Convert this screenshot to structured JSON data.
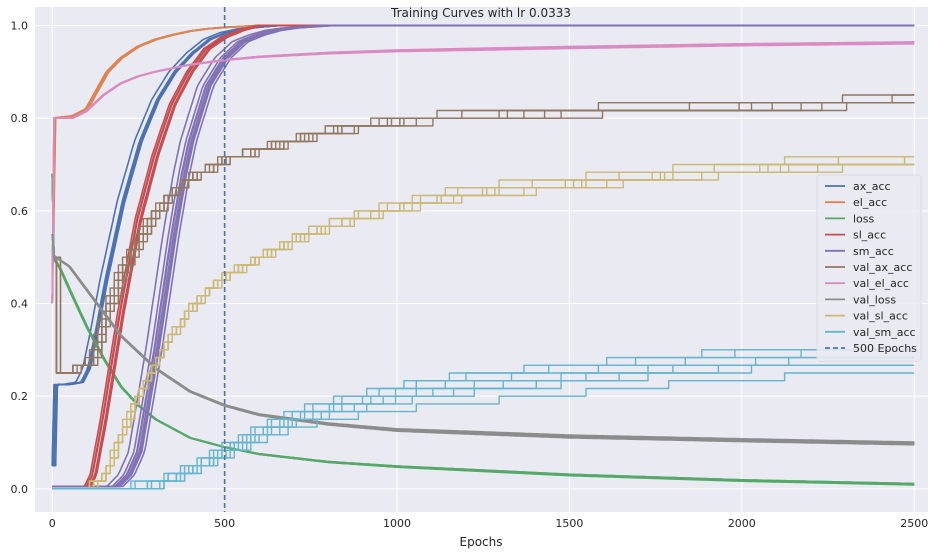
{
  "chart_data": {
    "type": "line",
    "title": "Training Curves with lr 0.0333",
    "xlabel": "Epochs",
    "ylabel": "",
    "xlim": [
      -50,
      2540
    ],
    "ylim": [
      -0.05,
      1.04
    ],
    "x_ticks": [
      0,
      500,
      1000,
      1500,
      2000,
      2500
    ],
    "y_ticks": [
      0.0,
      0.2,
      0.4,
      0.6,
      0.8,
      1.0
    ],
    "x_tick_labels": [
      "0",
      "500",
      "1000",
      "1500",
      "2000",
      "2500"
    ],
    "y_tick_labels": [
      "0.0",
      "0.2",
      "0.4",
      "0.6",
      "0.8",
      "1.0"
    ],
    "grid": true,
    "background": "#eaeaf2",
    "legend_position": "center-right",
    "runs_per_series": 8,
    "series": [
      {
        "name": "ax_acc",
        "color": "#4c72b0",
        "style": "solid",
        "stepped": false,
        "x": [
          0,
          2,
          10,
          40,
          80,
          100,
          120,
          150,
          200,
          250,
          300,
          350,
          400,
          450,
          500,
          550,
          600,
          650,
          2500
        ],
        "y": [
          0.05,
          0.22,
          0.225,
          0.225,
          0.23,
          0.26,
          0.33,
          0.45,
          0.62,
          0.75,
          0.84,
          0.9,
          0.94,
          0.97,
          0.985,
          0.993,
          0.997,
          1.0,
          1.0
        ],
        "spread": 0.03,
        "final_spread": 0.0
      },
      {
        "name": "el_acc",
        "color": "#dd8452",
        "style": "solid",
        "stepped": false,
        "x": [
          0,
          2,
          60,
          100,
          130,
          160,
          200,
          250,
          300,
          350,
          400,
          450,
          500,
          550,
          600,
          2500
        ],
        "y": [
          0.4,
          0.8,
          0.805,
          0.82,
          0.86,
          0.9,
          0.93,
          0.955,
          0.97,
          0.98,
          0.988,
          0.993,
          0.996,
          0.998,
          1.0,
          1.0
        ],
        "spread": 0.008,
        "final_spread": 0.0
      },
      {
        "name": "loss",
        "color": "#55a868",
        "style": "solid",
        "stepped": false,
        "x": [
          0,
          1,
          20,
          50,
          100,
          150,
          200,
          250,
          300,
          400,
          500,
          600,
          800,
          1000,
          1500,
          2000,
          2500
        ],
        "y": [
          0.68,
          0.5,
          0.48,
          0.43,
          0.35,
          0.28,
          0.22,
          0.18,
          0.15,
          0.11,
          0.09,
          0.075,
          0.058,
          0.048,
          0.03,
          0.018,
          0.01
        ],
        "spread": 0.004,
        "final_spread": 0.002
      },
      {
        "name": "sl_acc",
        "color": "#c44e52",
        "style": "solid",
        "stepped": false,
        "x": [
          0,
          100,
          120,
          150,
          200,
          250,
          300,
          350,
          400,
          450,
          500,
          550,
          600,
          2500
        ],
        "y": [
          0.0,
          0.0,
          0.03,
          0.15,
          0.38,
          0.58,
          0.72,
          0.83,
          0.9,
          0.95,
          0.975,
          0.99,
          1.0,
          1.0
        ],
        "spread": 0.035,
        "final_spread": 0.0
      },
      {
        "name": "sm_acc",
        "color": "#8172b3",
        "style": "solid",
        "stepped": false,
        "x": [
          0,
          180,
          220,
          250,
          300,
          350,
          380,
          400,
          450,
          500,
          550,
          600,
          650,
          700,
          800,
          2500
        ],
        "y": [
          0.0,
          0.0,
          0.03,
          0.08,
          0.3,
          0.55,
          0.68,
          0.75,
          0.87,
          0.93,
          0.965,
          0.98,
          0.99,
          0.995,
          1.0,
          1.0
        ],
        "spread": 0.05,
        "final_spread": 0.0
      },
      {
        "name": "val_ax_acc",
        "color": "#937860",
        "style": "solid",
        "stepped": true,
        "x": [
          0,
          2,
          100,
          120,
          150,
          200,
          250,
          300,
          350,
          400,
          450,
          500,
          600,
          700,
          800,
          900,
          1000,
          1200,
          1500,
          1800,
          2000,
          2200,
          2500
        ],
        "y": [
          0.5,
          0.255,
          0.26,
          0.29,
          0.37,
          0.47,
          0.54,
          0.6,
          0.64,
          0.67,
          0.69,
          0.71,
          0.73,
          0.75,
          0.77,
          0.78,
          0.79,
          0.8,
          0.81,
          0.815,
          0.82,
          0.825,
          0.835
        ],
        "spread": 0.025,
        "final_spread": 0.015
      },
      {
        "name": "val_el_acc",
        "color": "#da8bc3",
        "style": "solid",
        "stepped": false,
        "x": [
          0,
          2,
          60,
          100,
          150,
          200,
          250,
          300,
          400,
          500,
          600,
          800,
          1000,
          1500,
          2000,
          2500
        ],
        "y": [
          0.4,
          0.8,
          0.8,
          0.815,
          0.85,
          0.875,
          0.89,
          0.9,
          0.915,
          0.925,
          0.932,
          0.94,
          0.945,
          0.952,
          0.958,
          0.962
        ],
        "spread": 0.006,
        "final_spread": 0.003
      },
      {
        "name": "val_loss",
        "color": "#8c8c8c",
        "style": "solid",
        "stepped": false,
        "x": [
          0,
          1,
          50,
          100,
          150,
          200,
          300,
          400,
          500,
          600,
          800,
          1000,
          1500,
          2000,
          2500
        ],
        "y": [
          0.55,
          0.505,
          0.48,
          0.43,
          0.38,
          0.33,
          0.26,
          0.21,
          0.18,
          0.16,
          0.14,
          0.127,
          0.113,
          0.105,
          0.098
        ],
        "spread": 0.004,
        "final_spread": 0.003
      },
      {
        "name": "val_sl_acc",
        "color": "#ccb974",
        "style": "solid",
        "stepped": true,
        "x": [
          0,
          100,
          150,
          200,
          250,
          300,
          350,
          400,
          450,
          500,
          600,
          700,
          800,
          1000,
          1200,
          1500,
          1800,
          2000,
          2200,
          2500
        ],
        "y": [
          0.0,
          0.0,
          0.03,
          0.12,
          0.21,
          0.28,
          0.34,
          0.39,
          0.43,
          0.46,
          0.5,
          0.54,
          0.57,
          0.61,
          0.64,
          0.66,
          0.68,
          0.69,
          0.7,
          0.71
        ],
        "spread": 0.03,
        "final_spread": 0.015
      },
      {
        "name": "val_sm_acc",
        "color": "#64b5cd",
        "style": "solid",
        "stepped": true,
        "x": [
          0,
          200,
          300,
          400,
          500,
          600,
          700,
          800,
          1000,
          1200,
          1500,
          1800,
          2000,
          2200,
          2500
        ],
        "y": [
          0.0,
          0.0,
          0.01,
          0.04,
          0.08,
          0.12,
          0.15,
          0.17,
          0.2,
          0.22,
          0.24,
          0.26,
          0.27,
          0.28,
          0.28
        ],
        "spread": 0.025,
        "final_spread": 0.035
      },
      {
        "name": "500 Epochs",
        "color": "#4c72b0",
        "style": "dashed",
        "vline_x": 500
      }
    ]
  }
}
